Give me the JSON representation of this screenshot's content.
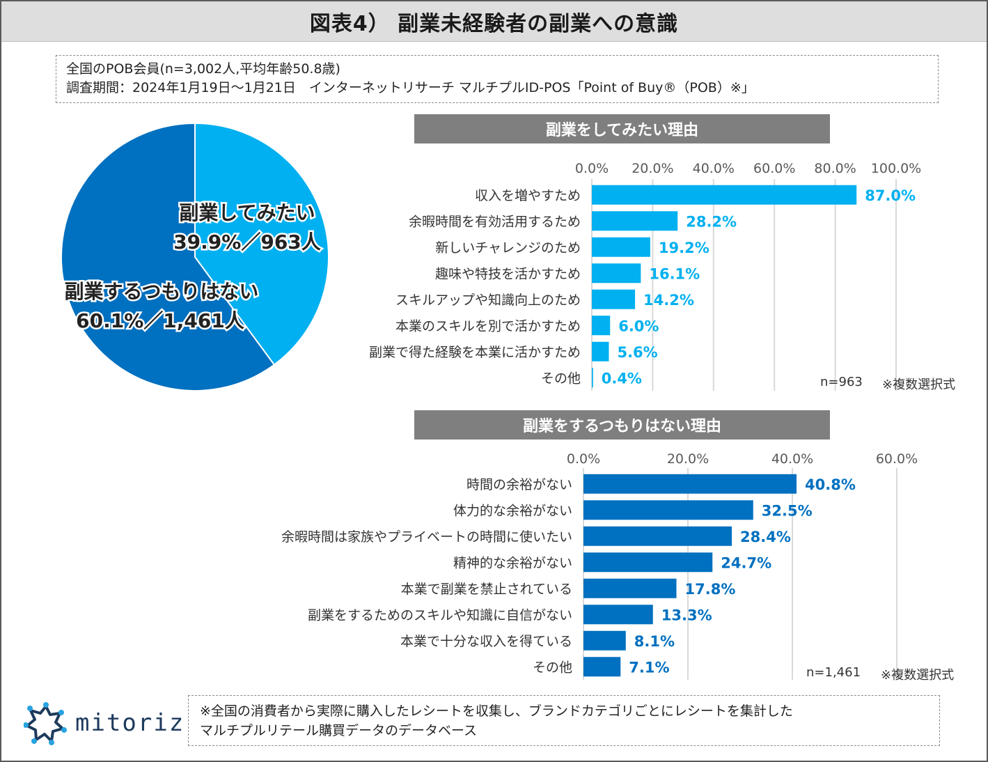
{
  "title": "図表4） 副業未経験者の副業への意識",
  "survey": {
    "line1": "全国のPOB会員(n=3,002人,平均年齢50.8歳)",
    "line2": "調査期間：2024年1月19日〜1月21日　インターネットリサーチ マルチプルID-POS「Point of Buy®（POB）※」"
  },
  "colors": {
    "light_blue": "#00b0f0",
    "dark_blue": "#0070c0",
    "header_gray": "#7f7f7f",
    "grid": "#d9d9d9"
  },
  "chart_data": [
    {
      "type": "pie",
      "slices": [
        {
          "name": "副業してみたい",
          "percent": 39.9,
          "count": 963,
          "label_line1": "副業してみたい",
          "label_line2": "39.9%／963人",
          "color": "#00b0f0"
        },
        {
          "name": "副業するつもりはない",
          "percent": 60.1,
          "count": 1461,
          "label_line1": "副業するつもりはない",
          "label_line2": "60.1%／1,461人",
          "color": "#0070c0"
        }
      ]
    },
    {
      "type": "bar",
      "orientation": "horizontal",
      "title": "副業をしてみたい理由",
      "categories": [
        "収入を増やすため",
        "余暇時間を有効活用するため",
        "新しいチャレンジのため",
        "趣味や特技を活かすため",
        "スキルアップや知識向上のため",
        "本業のスキルを別で活かすため",
        "副業で得た経験を本業に活かすため",
        "その他"
      ],
      "values": [
        87.0,
        28.2,
        19.2,
        16.1,
        14.2,
        6.0,
        5.6,
        0.4
      ],
      "value_labels": [
        "87.0%",
        "28.2%",
        "19.2%",
        "16.1%",
        "14.2%",
        "6.0%",
        "5.6%",
        "0.4%"
      ],
      "xlim": [
        0,
        100
      ],
      "ticks": [
        "0.0%",
        "20.0%",
        "40.0%",
        "60.0%",
        "80.0%",
        "100.0%"
      ],
      "color": "#00b0f0",
      "n_note": "n=963",
      "multi_note": "※複数選択式"
    },
    {
      "type": "bar",
      "orientation": "horizontal",
      "title": "副業をするつもりはない理由",
      "categories": [
        "時間の余裕がない",
        "体力的な余裕がない",
        "余暇時間は家族やプライベートの時間に使いたい",
        "精神的な余裕がない",
        "本業で副業を禁止されている",
        "副業をするためのスキルや知識に自信がない",
        "本業で十分な収入を得ている",
        "その他"
      ],
      "values": [
        40.8,
        32.5,
        28.4,
        24.7,
        17.8,
        13.3,
        8.1,
        7.1
      ],
      "value_labels": [
        "40.8%",
        "32.5%",
        "28.4%",
        "24.7%",
        "17.8%",
        "13.3%",
        "8.1%",
        "7.1%"
      ],
      "xlim": [
        0,
        60
      ],
      "ticks": [
        "0.0%",
        "20.0%",
        "40.0%",
        "60.0%"
      ],
      "color": "#0070c0",
      "n_note": "n=1,461",
      "multi_note": "※複数選択式"
    }
  ],
  "logo": {
    "text": "mitoriz"
  },
  "footnote": {
    "line1": "※全国の消費者から実際に購入したレシートを収集し、ブランドカテゴリごとにレシートを集計した",
    "line2": "マルチプルリテール購買データのデータベース"
  }
}
